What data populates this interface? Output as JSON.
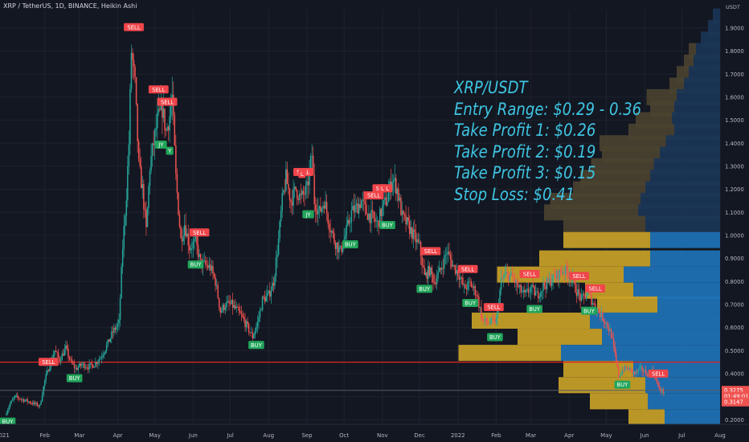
{
  "header": {
    "symbol_title": "XRP / TetherUS, 1D, BINANCE, Heikin Ashi"
  },
  "trade_panel": {
    "pair": "XRP/USDT",
    "entry": "Entry Range: $0.29 - 0.36",
    "tp1": "Take Profit 1: $0.26",
    "tp2": "Take Profit 2: $0.19",
    "tp3": "Take Profit 3: $0.15",
    "stop": "Stop Loss: $0.41"
  },
  "colors": {
    "background": "#131722",
    "bull": "#26a69a",
    "bear": "#ef5350",
    "panel_text": "#3fc5e2",
    "resistance_line": "#e02525",
    "vp_up": "#1f73b7",
    "vp_down": "#c9a227"
  },
  "chart_data": {
    "type": "candlestick",
    "y_axis": {
      "unit": "USDT",
      "scale": "linear",
      "range": [
        0.18,
        1.98
      ],
      "tick_labels": [
        "1.9000",
        "1.8000",
        "1.7000",
        "1.6000",
        "1.5000",
        "1.4000",
        "1.3000",
        "1.2000",
        "1.1000",
        "1.0000",
        "0.9000",
        "0.8000",
        "0.7000",
        "0.6000",
        "0.5000",
        "0.4000",
        "0.3000",
        "0.2000"
      ],
      "price_labels": [
        {
          "text": "0.3275",
          "value": 0.3275,
          "color": "#ef5350"
        },
        {
          "text": "01:49:01",
          "value": 0.302,
          "color": "#ef5350"
        },
        {
          "text": "0.3147",
          "value": 0.277,
          "color": "#ef5350"
        }
      ]
    },
    "x_axis": {
      "first_label": "2021",
      "labels": [
        "Feb",
        "Mar",
        "Apr",
        "May",
        "Jun",
        "Jul",
        "Aug",
        "Sep",
        "Oct",
        "Nov",
        "Dec",
        "2022",
        "Feb",
        "Mar",
        "Apr",
        "May",
        "Jun",
        "Jul",
        "Aug"
      ],
      "start": "2021-01-01",
      "end": "2022-08-01"
    },
    "horizontal_lines": [
      {
        "value": 0.45,
        "color": "#e02525"
      },
      {
        "value": 0.3275,
        "color": "#555a66"
      }
    ],
    "price_path": [
      [
        "2021-01-01",
        0.22
      ],
      [
        "2021-01-05",
        0.27
      ],
      [
        "2021-01-09",
        0.3
      ],
      [
        "2021-01-14",
        0.29
      ],
      [
        "2021-01-19",
        0.28
      ],
      [
        "2021-01-24",
        0.27
      ],
      [
        "2021-01-29",
        0.26
      ],
      [
        "2021-02-02",
        0.37
      ],
      [
        "2021-02-06",
        0.44
      ],
      [
        "2021-02-10",
        0.5
      ],
      [
        "2021-02-14",
        0.46
      ],
      [
        "2021-02-19",
        0.51
      ],
      [
        "2021-02-23",
        0.45
      ],
      [
        "2021-02-27",
        0.42
      ],
      [
        "2021-03-04",
        0.44
      ],
      [
        "2021-03-09",
        0.43
      ],
      [
        "2021-03-14",
        0.44
      ],
      [
        "2021-03-19",
        0.47
      ],
      [
        "2021-03-24",
        0.52
      ],
      [
        "2021-03-29",
        0.58
      ],
      [
        "2021-04-03",
        0.62
      ],
      [
        "2021-04-06",
        0.95
      ],
      [
        "2021-04-09",
        1.18
      ],
      [
        "2021-04-11",
        1.4
      ],
      [
        "2021-04-13",
        1.8
      ],
      [
        "2021-04-16",
        1.65
      ],
      [
        "2021-04-19",
        1.3
      ],
      [
        "2021-04-22",
        1.2
      ],
      [
        "2021-04-25",
        1.02
      ],
      [
        "2021-04-28",
        1.3
      ],
      [
        "2021-05-01",
        1.4
      ],
      [
        "2021-05-04",
        1.5
      ],
      [
        "2021-05-08",
        1.55
      ],
      [
        "2021-05-11",
        1.45
      ],
      [
        "2021-05-14",
        1.52
      ],
      [
        "2021-05-16",
        1.6
      ],
      [
        "2021-05-19",
        1.25
      ],
      [
        "2021-05-23",
        0.98
      ],
      [
        "2021-05-26",
        1.05
      ],
      [
        "2021-05-30",
        0.95
      ],
      [
        "2021-06-04",
        0.97
      ],
      [
        "2021-06-08",
        0.88
      ],
      [
        "2021-06-12",
        0.87
      ],
      [
        "2021-06-16",
        0.86
      ],
      [
        "2021-06-20",
        0.8
      ],
      [
        "2021-06-24",
        0.67
      ],
      [
        "2021-06-28",
        0.7
      ],
      [
        "2021-07-03",
        0.7
      ],
      [
        "2021-07-08",
        0.67
      ],
      [
        "2021-07-12",
        0.64
      ],
      [
        "2021-07-16",
        0.6
      ],
      [
        "2021-07-20",
        0.56
      ],
      [
        "2021-07-24",
        0.62
      ],
      [
        "2021-07-28",
        0.72
      ],
      [
        "2021-08-02",
        0.74
      ],
      [
        "2021-08-06",
        0.8
      ],
      [
        "2021-08-10",
        0.98
      ],
      [
        "2021-08-13",
        1.15
      ],
      [
        "2021-08-16",
        1.25
      ],
      [
        "2021-08-20",
        1.15
      ],
      [
        "2021-08-24",
        1.2
      ],
      [
        "2021-08-28",
        1.16
      ],
      [
        "2021-09-02",
        1.2
      ],
      [
        "2021-09-06",
        1.35
      ],
      [
        "2021-09-08",
        1.15
      ],
      [
        "2021-09-12",
        1.1
      ],
      [
        "2021-09-16",
        1.15
      ],
      [
        "2021-09-20",
        1.05
      ],
      [
        "2021-09-24",
        0.98
      ],
      [
        "2021-09-29",
        0.93
      ],
      [
        "2021-10-03",
        1.0
      ],
      [
        "2021-10-08",
        1.1
      ],
      [
        "2021-10-12",
        1.12
      ],
      [
        "2021-10-16",
        1.15
      ],
      [
        "2021-10-20",
        1.1
      ],
      [
        "2021-10-24",
        1.08
      ],
      [
        "2021-10-29",
        1.05
      ],
      [
        "2021-11-02",
        1.12
      ],
      [
        "2021-11-06",
        1.16
      ],
      [
        "2021-11-10",
        1.25
      ],
      [
        "2021-11-14",
        1.2
      ],
      [
        "2021-11-18",
        1.08
      ],
      [
        "2021-11-22",
        1.05
      ],
      [
        "2021-11-27",
        1.0
      ],
      [
        "2021-12-02",
        0.95
      ],
      [
        "2021-12-06",
        0.82
      ],
      [
        "2021-12-10",
        0.85
      ],
      [
        "2021-12-14",
        0.8
      ],
      [
        "2021-12-19",
        0.85
      ],
      [
        "2021-12-24",
        0.93
      ],
      [
        "2021-12-29",
        0.87
      ],
      [
        "2022-01-03",
        0.83
      ],
      [
        "2022-01-07",
        0.77
      ],
      [
        "2022-01-12",
        0.79
      ],
      [
        "2022-01-17",
        0.75
      ],
      [
        "2022-01-22",
        0.63
      ],
      [
        "2022-01-27",
        0.62
      ],
      [
        "2022-02-02",
        0.63
      ],
      [
        "2022-02-06",
        0.8
      ],
      [
        "2022-02-10",
        0.83
      ],
      [
        "2022-02-15",
        0.82
      ],
      [
        "2022-02-20",
        0.77
      ],
      [
        "2022-02-25",
        0.74
      ],
      [
        "2022-03-02",
        0.77
      ],
      [
        "2022-03-07",
        0.74
      ],
      [
        "2022-03-12",
        0.78
      ],
      [
        "2022-03-17",
        0.8
      ],
      [
        "2022-03-22",
        0.82
      ],
      [
        "2022-03-28",
        0.85
      ],
      [
        "2022-04-03",
        0.83
      ],
      [
        "2022-04-07",
        0.77
      ],
      [
        "2022-04-12",
        0.72
      ],
      [
        "2022-04-17",
        0.75
      ],
      [
        "2022-04-22",
        0.7
      ],
      [
        "2022-04-27",
        0.66
      ],
      [
        "2022-05-02",
        0.62
      ],
      [
        "2022-05-06",
        0.57
      ],
      [
        "2022-05-09",
        0.48
      ],
      [
        "2022-05-12",
        0.39
      ],
      [
        "2022-05-16",
        0.42
      ],
      [
        "2022-05-20",
        0.42
      ],
      [
        "2022-05-25",
        0.4
      ],
      [
        "2022-05-30",
        0.42
      ],
      [
        "2022-06-04",
        0.4
      ],
      [
        "2022-06-09",
        0.41
      ],
      [
        "2022-06-13",
        0.34
      ],
      [
        "2022-06-17",
        0.32
      ]
    ],
    "signals": [
      {
        "date": "2021-04-14",
        "label": "SELL"
      },
      {
        "date": "2021-05-04",
        "label": "SELL"
      },
      {
        "date": "2021-05-11",
        "label": "SELL"
      },
      {
        "date": "2021-08-29",
        "label": "SELL"
      },
      {
        "date": "2021-11-01",
        "label": "SELL"
      },
      {
        "date": "2021-10-25",
        "label": "SELL"
      },
      {
        "date": "2021-12-10",
        "label": "SELL"
      },
      {
        "date": "2022-01-09",
        "label": "SELL"
      },
      {
        "date": "2022-01-30",
        "label": "SELL"
      },
      {
        "date": "2022-02-28",
        "label": "SELL"
      },
      {
        "date": "2022-04-09",
        "label": "SELL"
      },
      {
        "date": "2022-04-22",
        "label": "SELL"
      },
      {
        "date": "2022-06-12",
        "label": "SELL"
      },
      {
        "date": "2021-02-04",
        "label": "SELL"
      },
      {
        "date": "2021-06-06",
        "label": "SELL"
      },
      {
        "date": "2021-02-25",
        "label": "BUY"
      },
      {
        "date": "2021-06-03",
        "label": "BUY"
      },
      {
        "date": "2021-07-22",
        "label": "BUY"
      },
      {
        "date": "2021-10-06",
        "label": "BUY"
      },
      {
        "date": "2021-11-05",
        "label": "BUY"
      },
      {
        "date": "2021-12-05",
        "label": "BUY"
      },
      {
        "date": "2022-01-11",
        "label": "BUY"
      },
      {
        "date": "2022-01-31",
        "label": "BUY"
      },
      {
        "date": "2022-03-04",
        "label": "BUY"
      },
      {
        "date": "2022-04-17",
        "label": "BUY"
      },
      {
        "date": "2022-05-14",
        "label": "BUY"
      },
      {
        "date": "2021-01-02",
        "label": "BUY"
      }
    ],
    "signals_partial": [
      {
        "date": "2021-05-06",
        "label": "JY"
      },
      {
        "date": "2021-05-13",
        "label": "Y"
      },
      {
        "date": "2021-08-28",
        "label": "L"
      },
      {
        "date": "2021-09-02",
        "label": "JY"
      },
      {
        "date": "2021-11-01",
        "label": "L"
      }
    ],
    "volume_profile": {
      "unit": "relative",
      "rows": [
        {
          "price": 1.95,
          "up": 0.006,
          "down": 0.0
        },
        {
          "price": 1.9,
          "up": 0.01,
          "down": 0.0
        },
        {
          "price": 1.85,
          "up": 0.016,
          "down": 0.0
        },
        {
          "price": 1.8,
          "up": 0.02,
          "down": 0.006
        },
        {
          "price": 1.75,
          "up": 0.022,
          "down": 0.008
        },
        {
          "price": 1.7,
          "up": 0.026,
          "down": 0.01
        },
        {
          "price": 1.65,
          "up": 0.03,
          "down": 0.012
        },
        {
          "price": 1.6,
          "up": 0.036,
          "down": 0.025
        },
        {
          "price": 1.55,
          "up": 0.038,
          "down": 0.02
        },
        {
          "price": 1.5,
          "up": 0.04,
          "down": 0.03
        },
        {
          "price": 1.45,
          "up": 0.038,
          "down": 0.038
        },
        {
          "price": 1.4,
          "up": 0.045,
          "down": 0.055
        },
        {
          "price": 1.35,
          "up": 0.05,
          "down": 0.048
        },
        {
          "price": 1.3,
          "up": 0.055,
          "down": 0.052
        },
        {
          "price": 1.25,
          "up": 0.058,
          "down": 0.058
        },
        {
          "price": 1.2,
          "up": 0.062,
          "down": 0.06
        },
        {
          "price": 1.15,
          "up": 0.066,
          "down": 0.075
        },
        {
          "price": 1.1,
          "up": 0.068,
          "down": 0.078
        },
        {
          "price": 1.05,
          "up": 0.062,
          "down": 0.068
        },
        {
          "price": 0.98,
          "up": 0.058,
          "down": 0.072
        },
        {
          "price": 0.9,
          "up": 0.058,
          "down": 0.092
        },
        {
          "price": 0.83,
          "up": 0.08,
          "down": 0.105
        },
        {
          "price": 0.76,
          "up": 0.072,
          "down": 0.04
        },
        {
          "price": 0.7,
          "up": 0.052,
          "down": 0.05
        },
        {
          "price": 0.63,
          "up": 0.108,
          "down": 0.098
        },
        {
          "price": 0.56,
          "up": 0.098,
          "down": 0.07
        },
        {
          "price": 0.49,
          "up": 0.132,
          "down": 0.085
        },
        {
          "price": 0.42,
          "up": 0.072,
          "down": 0.058
        },
        {
          "price": 0.35,
          "up": 0.062,
          "down": 0.072
        },
        {
          "price": 0.28,
          "up": 0.06,
          "down": 0.048
        },
        {
          "price": 0.21,
          "up": 0.046,
          "down": 0.03
        }
      ]
    }
  }
}
